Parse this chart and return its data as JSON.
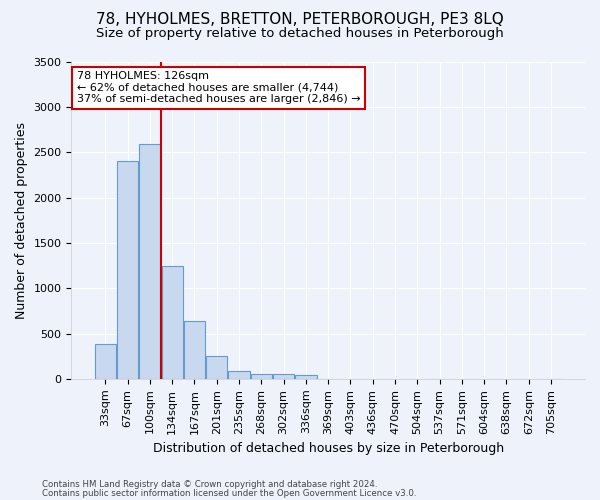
{
  "title": "78, HYHOLMES, BRETTON, PETERBOROUGH, PE3 8LQ",
  "subtitle": "Size of property relative to detached houses in Peterborough",
  "xlabel": "Distribution of detached houses by size in Peterborough",
  "ylabel": "Number of detached properties",
  "footer_line1": "Contains HM Land Registry data © Crown copyright and database right 2024.",
  "footer_line2": "Contains public sector information licensed under the Open Government Licence v3.0.",
  "categories": [
    "33sqm",
    "67sqm",
    "100sqm",
    "134sqm",
    "167sqm",
    "201sqm",
    "235sqm",
    "268sqm",
    "302sqm",
    "336sqm",
    "369sqm",
    "403sqm",
    "436sqm",
    "470sqm",
    "504sqm",
    "537sqm",
    "571sqm",
    "604sqm",
    "638sqm",
    "672sqm",
    "705sqm"
  ],
  "values": [
    390,
    2400,
    2590,
    1240,
    640,
    255,
    90,
    55,
    55,
    40,
    0,
    0,
    0,
    0,
    0,
    0,
    0,
    0,
    0,
    0,
    0
  ],
  "bar_color": "#c8d9ef",
  "bar_edge_color": "#6699cc",
  "ylim": [
    0,
    3500
  ],
  "yticks": [
    0,
    500,
    1000,
    1500,
    2000,
    2500,
    3000,
    3500
  ],
  "red_line_x": 2.5,
  "property_line_color": "#cc0000",
  "annotation_text": "78 HYHOLMES: 126sqm\n← 62% of detached houses are smaller (4,744)\n37% of semi-detached houses are larger (2,846) →",
  "annotation_box_color": "#cc0000",
  "title_fontsize": 11,
  "subtitle_fontsize": 9.5,
  "xlabel_fontsize": 9,
  "ylabel_fontsize": 9,
  "background_color": "#eef2fb",
  "plot_bg_color": "#eef2fb",
  "grid_color": "#ffffff",
  "tick_fontsize": 8
}
